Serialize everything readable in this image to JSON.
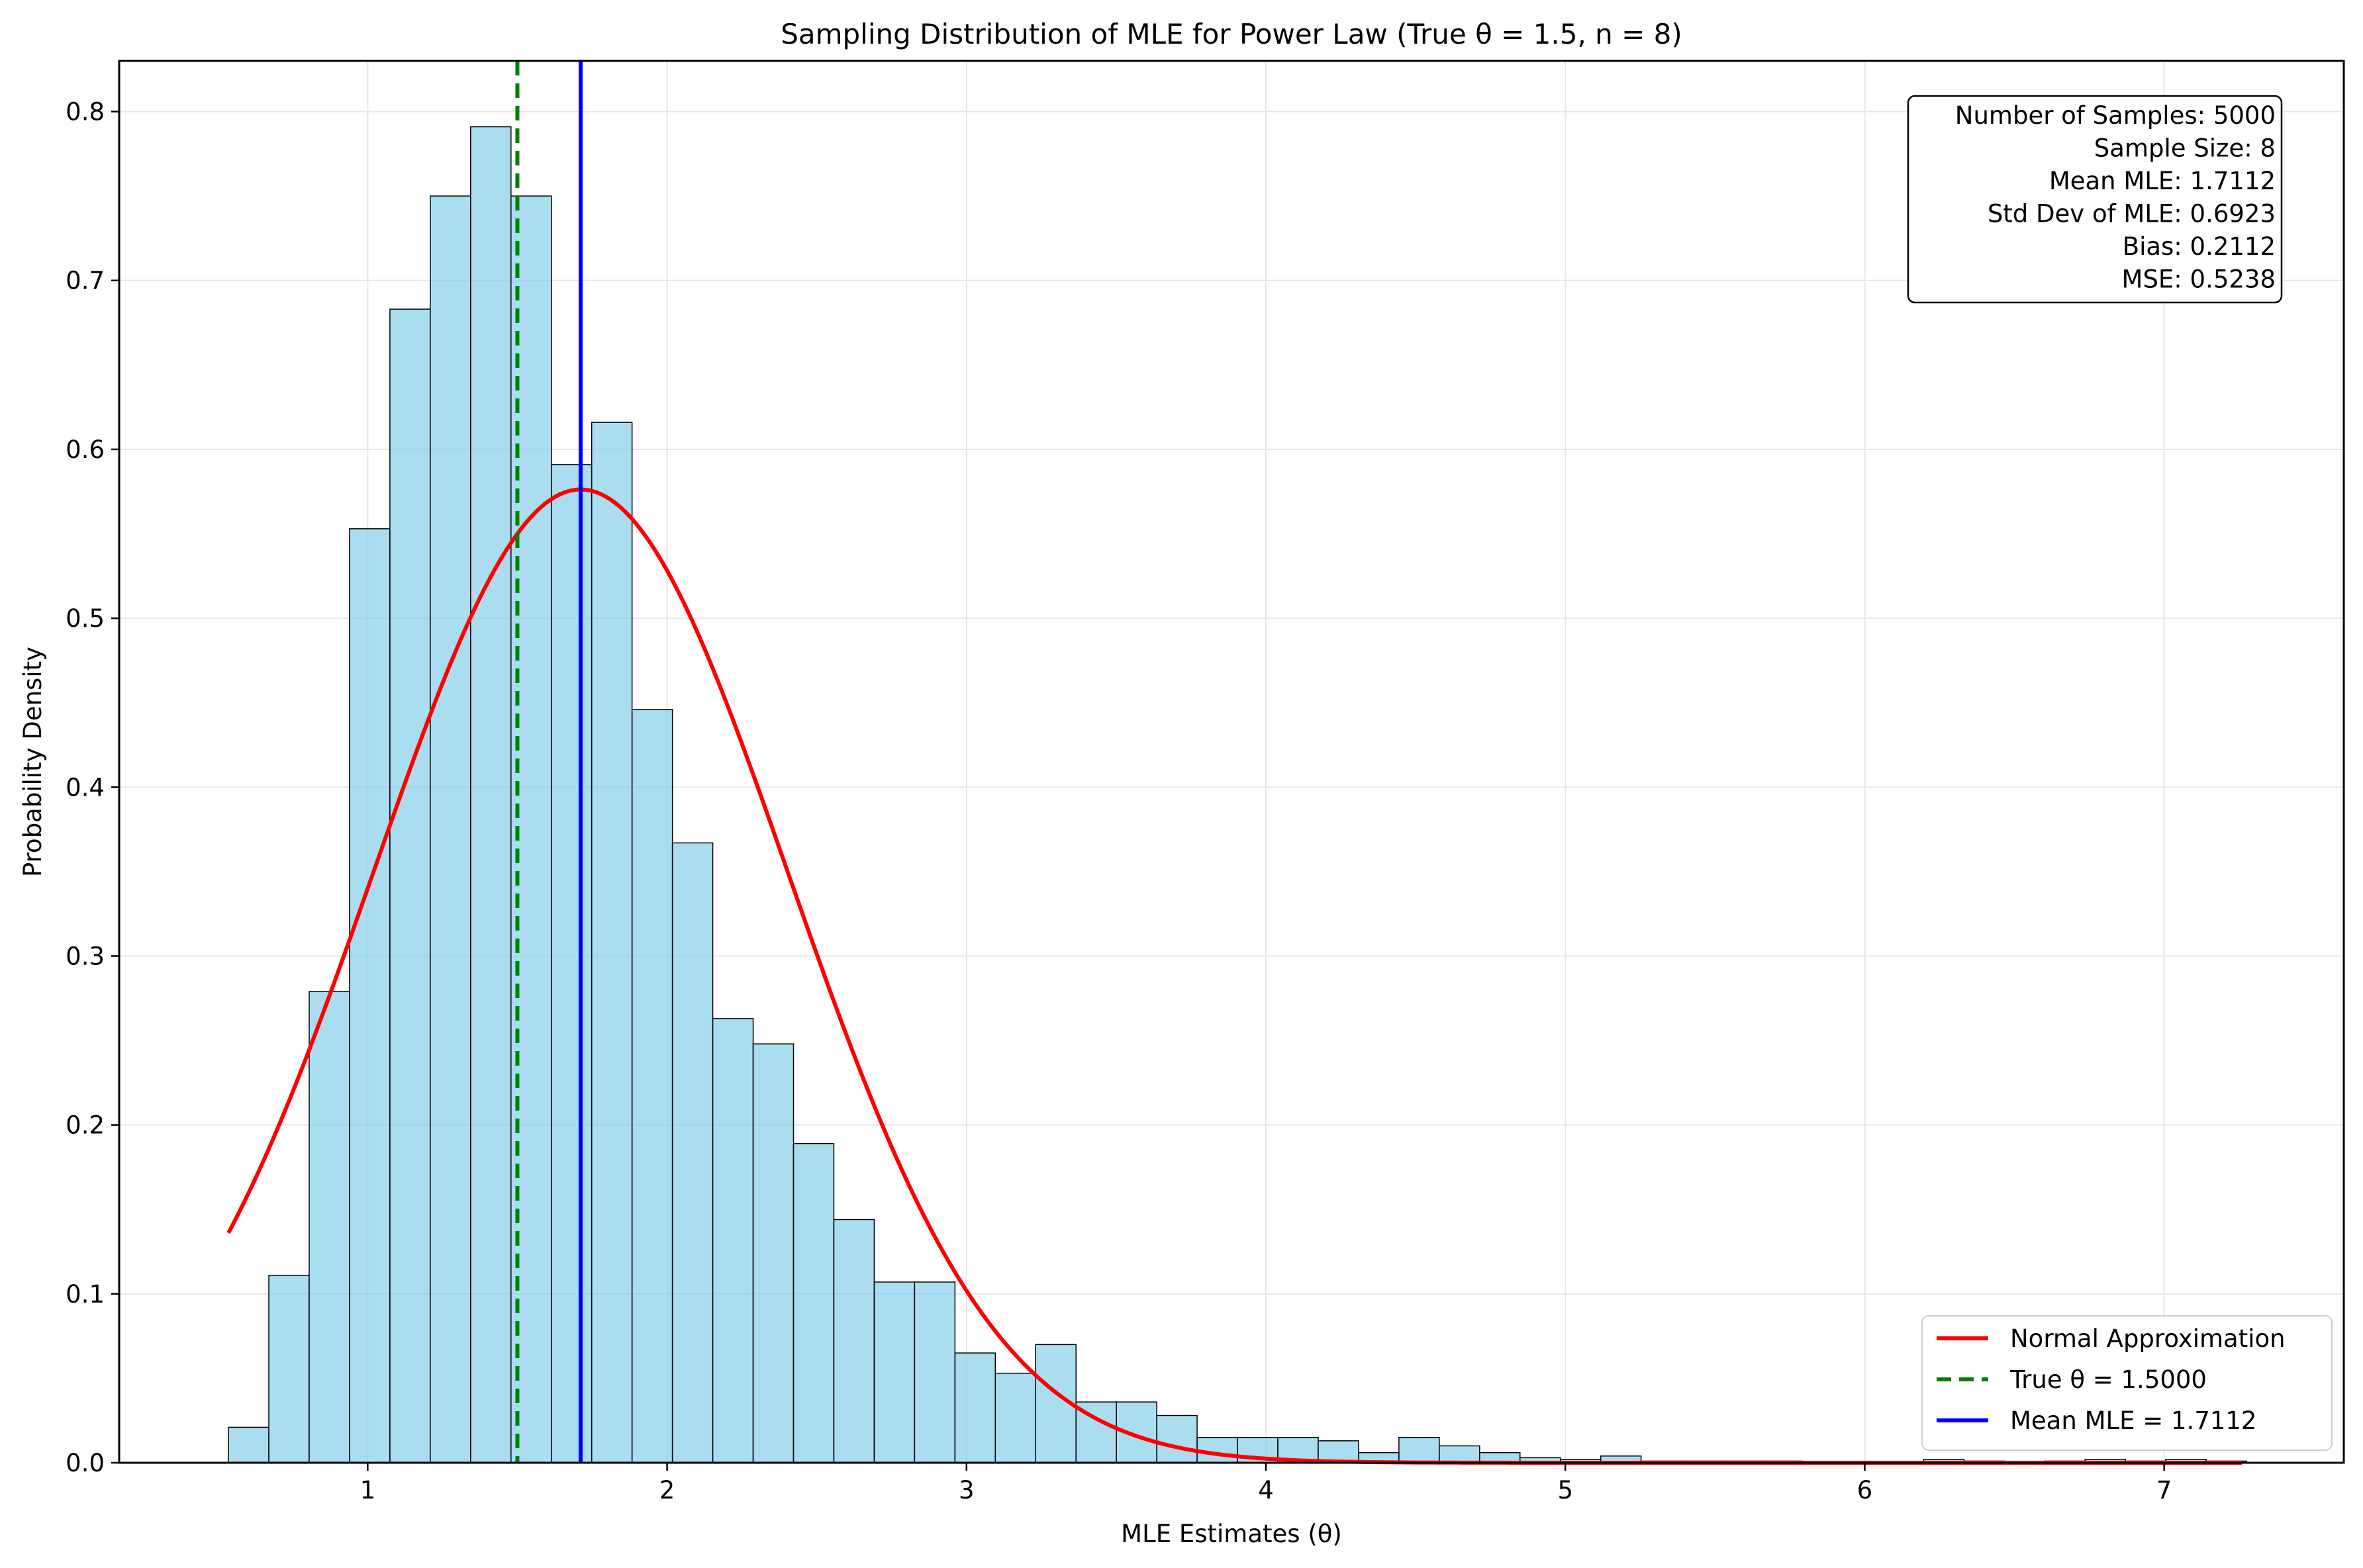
{
  "chart_data": {
    "type": "bar",
    "title": "Sampling Distribution of MLE for Power Law (True θ = 1.5, n = 8)",
    "xlabel": "MLE Estimates (θ)",
    "ylabel": "Probability Density",
    "xlim": [
      0.17,
      7.6
    ],
    "ylim": [
      0,
      0.83
    ],
    "xticks": [
      1,
      2,
      3,
      4,
      5,
      6,
      7
    ],
    "yticks": [
      0.0,
      0.1,
      0.2,
      0.3,
      0.4,
      0.5,
      0.6,
      0.7,
      0.8
    ],
    "ytick_labels": [
      "0.0",
      "0.1",
      "0.2",
      "0.3",
      "0.4",
      "0.5",
      "0.6",
      "0.7",
      "0.8"
    ],
    "grid": true,
    "histogram": {
      "name": "",
      "bin_start": 0.535,
      "bin_width": 0.1348,
      "values": [
        0.021,
        0.111,
        0.279,
        0.553,
        0.683,
        0.75,
        0.791,
        0.75,
        0.591,
        0.616,
        0.446,
        0.367,
        0.263,
        0.248,
        0.189,
        0.144,
        0.107,
        0.107,
        0.065,
        0.053,
        0.07,
        0.036,
        0.036,
        0.028,
        0.015,
        0.015,
        0.015,
        0.013,
        0.006,
        0.015,
        0.01,
        0.006,
        0.003,
        0.002,
        0.004,
        0.001,
        0.001,
        0.001,
        0.001,
        0.0,
        0.0,
        0.0,
        0.002,
        0.001,
        0.0,
        0.001,
        0.002,
        0.001,
        0.002,
        0.001,
        0.0,
        0.0,
        0.0,
        0.0,
        0.0,
        0.0,
        0.0,
        0.0,
        0.0,
        0.001
      ],
      "fill": "#87ceeb",
      "edge": "#000000"
    },
    "series": [
      {
        "name": "Normal Approximation",
        "kind": "normal-pdf",
        "mean": 1.7112,
        "std": 0.6923,
        "x_range": [
          0.535,
          7.26
        ],
        "color": "#ff0000",
        "style": "solid"
      },
      {
        "name": "True θ = 1.5000",
        "kind": "vline",
        "x": 1.5,
        "color": "#008000",
        "style": "dashed"
      },
      {
        "name": "Mean MLE = 1.7112",
        "kind": "vline",
        "x": 1.7112,
        "color": "#0000ff",
        "style": "solid"
      }
    ],
    "legend_position": "lower-right",
    "stats_box": {
      "position": "top-right",
      "lines": [
        "Number of Samples: 5000",
        "Sample Size: 8",
        "Mean MLE: 1.7112",
        "Std Dev of MLE: 0.6923",
        "Bias: 0.2112",
        "MSE: 0.5238"
      ]
    }
  }
}
